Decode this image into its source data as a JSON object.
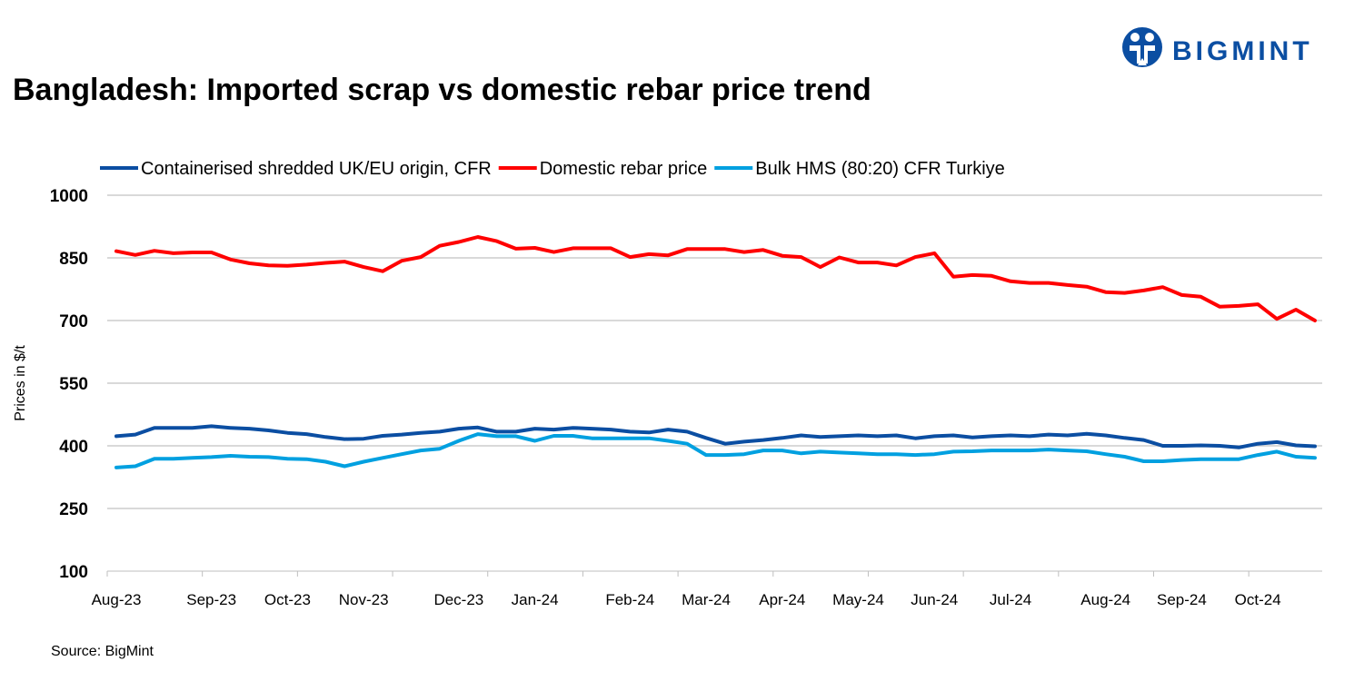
{
  "logo": {
    "text": "BIGMINT",
    "color": "#0b4ea2"
  },
  "chart_data": {
    "type": "line",
    "title": "Bangladesh: Imported scrap vs domestic rebar price trend",
    "ylabel": "Prices in $/t",
    "xlabel": "",
    "source": "Source: BigMint",
    "ylim": [
      100,
      1000
    ],
    "yticks": [
      100,
      250,
      400,
      550,
      700,
      850,
      1000
    ],
    "grid": true,
    "legend_position": "top",
    "x_tick_labels": [
      {
        "label": "Aug-23",
        "index": 0
      },
      {
        "label": "Sep-23",
        "index": 5
      },
      {
        "label": "Oct-23",
        "index": 9
      },
      {
        "label": "Nov-23",
        "index": 13
      },
      {
        "label": "Dec-23",
        "index": 18
      },
      {
        "label": "Jan-24",
        "index": 22
      },
      {
        "label": "Feb-24",
        "index": 27
      },
      {
        "label": "Mar-24",
        "index": 31
      },
      {
        "label": "Apr-24",
        "index": 35
      },
      {
        "label": "May-24",
        "index": 39
      },
      {
        "label": "Jun-24",
        "index": 43
      },
      {
        "label": "Jul-24",
        "index": 47
      },
      {
        "label": "Aug-24",
        "index": 52
      },
      {
        "label": "Sep-24",
        "index": 56
      },
      {
        "label": "Oct-24",
        "index": 60
      }
    ],
    "series": [
      {
        "name": "Containerised shredded UK/EU origin, CFR",
        "color": "#0b4ea2",
        "values": [
          423,
          427,
          443,
          443,
          443,
          447,
          443,
          441,
          437,
          431,
          428,
          421,
          416,
          417,
          424,
          427,
          431,
          434,
          441,
          444,
          434,
          434,
          441,
          439,
          443,
          441,
          439,
          434,
          432,
          439,
          434,
          419,
          405,
          410,
          414,
          419,
          425,
          421,
          423,
          425,
          423,
          425,
          418,
          423,
          425,
          420,
          423,
          425,
          423,
          427,
          425,
          429,
          425,
          419,
          414,
          400,
          400,
          401,
          400,
          396,
          405,
          409,
          401,
          399
        ]
      },
      {
        "name": "Domestic rebar price",
        "color": "#ff0000",
        "values": [
          866,
          857,
          867,
          861,
          863,
          863,
          846,
          837,
          832,
          831,
          834,
          838,
          841,
          828,
          818,
          843,
          852,
          879,
          888,
          900,
          890,
          872,
          874,
          864,
          873,
          873,
          873,
          852,
          859,
          856,
          871,
          871,
          871,
          864,
          869,
          855,
          852,
          828,
          851,
          839,
          839,
          832,
          852,
          861,
          805,
          809,
          807,
          794,
          790,
          790,
          785,
          781,
          768,
          766,
          772,
          780,
          761,
          757,
          733,
          735,
          739,
          704,
          726,
          700
        ]
      },
      {
        "name": "Bulk HMS (80:20) CFR Turkiye",
        "color": "#00a0e0",
        "values": [
          348,
          351,
          369,
          369,
          371,
          373,
          376,
          374,
          373,
          369,
          368,
          362,
          351,
          362,
          371,
          380,
          389,
          393,
          412,
          428,
          423,
          423,
          412,
          424,
          424,
          418,
          418,
          418,
          418,
          412,
          405,
          378,
          378,
          380,
          389,
          389,
          382,
          386,
          384,
          382,
          380,
          380,
          378,
          380,
          386,
          387,
          389,
          389,
          389,
          391,
          389,
          387,
          380,
          374,
          363,
          363,
          366,
          368,
          368,
          368,
          378,
          386,
          374,
          371
        ]
      }
    ]
  }
}
